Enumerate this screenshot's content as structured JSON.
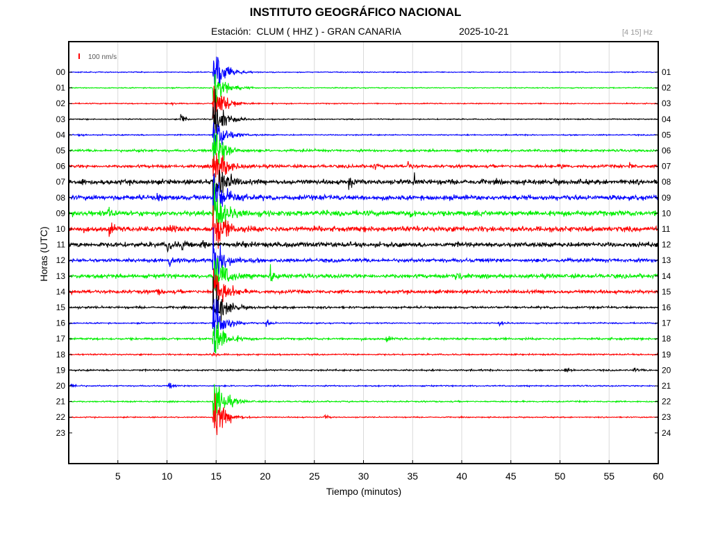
{
  "header": {
    "title": "INSTITUTO GEOGRÁFICO NACIONAL",
    "station_line": "Estación:  CLUM ( HHZ ) - GRAN CANARIA",
    "date": "2025-10-21",
    "frequency": "[4 15] Hz"
  },
  "chart_data": {
    "type": "line",
    "title": "INSTITUTO GEOGRÁFICO NACIONAL",
    "subtitle": "Estación:  CLUM ( HHZ ) - GRAN CANARIA   2025-10-21",
    "xlabel": "Tiempo (minutos)",
    "ylabel": "Horas (UTC)",
    "xlim": [
      0,
      60
    ],
    "x_ticks": [
      "5",
      "10",
      "15",
      "20",
      "25",
      "30",
      "35",
      "40",
      "45",
      "50",
      "55",
      "60"
    ],
    "grid": true,
    "scale_label": "100 nm/s",
    "scale_color": "#ff0000",
    "left_hour_labels": [
      "00",
      "01",
      "02",
      "03",
      "04",
      "05",
      "06",
      "07",
      "08",
      "09",
      "10",
      "11",
      "12",
      "13",
      "14",
      "15",
      "16",
      "17",
      "18",
      "19",
      "20",
      "21",
      "22",
      "23"
    ],
    "right_hour_labels": [
      "01",
      "02",
      "03",
      "04",
      "05",
      "06",
      "07",
      "08",
      "09",
      "10",
      "11",
      "12",
      "13",
      "14",
      "15",
      "16",
      "17",
      "18",
      "19",
      "20",
      "21",
      "22",
      "23",
      "24"
    ],
    "color_cycle": [
      "#0000ff",
      "#00ee00",
      "#ff0000",
      "#000000"
    ],
    "trace_end_minute_hour22": 60,
    "traces": [
      {
        "hour": "00",
        "noise": 0.9,
        "events": [
          {
            "t": 14.7,
            "amp": 60
          }
        ]
      },
      {
        "hour": "01",
        "noise": 0.9,
        "events": [
          {
            "t": 14.7,
            "amp": 60
          }
        ]
      },
      {
        "hour": "02",
        "noise": 1.0,
        "events": [
          {
            "t": 14.7,
            "amp": 60
          },
          {
            "t": 10.5,
            "amp": 3
          }
        ]
      },
      {
        "hour": "03",
        "noise": 1.0,
        "events": [
          {
            "t": 11.4,
            "amp": 16
          },
          {
            "t": 14.7,
            "amp": 60
          }
        ]
      },
      {
        "hour": "04",
        "noise": 1.1,
        "events": [
          {
            "t": 1.0,
            "amp": 3
          },
          {
            "t": 14.7,
            "amp": 60
          }
        ]
      },
      {
        "hour": "05",
        "noise": 2.2,
        "events": [
          {
            "t": 7.0,
            "amp": 3
          },
          {
            "t": 14.7,
            "amp": 60
          }
        ]
      },
      {
        "hour": "06",
        "noise": 2.8,
        "events": [
          {
            "t": 14.7,
            "amp": 60
          },
          {
            "t": 31.0,
            "amp": 7
          },
          {
            "t": 34.5,
            "amp": 9
          },
          {
            "t": 50.0,
            "amp": 7
          },
          {
            "t": 57.0,
            "amp": 8
          }
        ]
      },
      {
        "hour": "07",
        "noise": 4.5,
        "events": [
          {
            "t": 1.0,
            "amp": 9
          },
          {
            "t": 28.5,
            "amp": 14
          },
          {
            "t": 35.0,
            "amp": 16
          },
          {
            "t": 14.7,
            "amp": 60
          }
        ]
      },
      {
        "hour": "08",
        "noise": 4.5,
        "events": [
          {
            "t": 9.0,
            "amp": 8
          },
          {
            "t": 17.5,
            "amp": 10
          },
          {
            "t": 14.7,
            "amp": 60
          }
        ]
      },
      {
        "hour": "09",
        "noise": 5.0,
        "events": [
          {
            "t": 4.0,
            "amp": 10
          },
          {
            "t": 34.8,
            "amp": 9
          },
          {
            "t": 14.7,
            "amp": 60
          }
        ]
      },
      {
        "hour": "10",
        "noise": 5.0,
        "events": [
          {
            "t": 4.1,
            "amp": 14
          },
          {
            "t": 10.3,
            "amp": 16
          },
          {
            "t": 14.7,
            "amp": 60
          }
        ]
      },
      {
        "hour": "11",
        "noise": 4.5,
        "events": [
          {
            "t": 10.0,
            "amp": 16
          },
          {
            "t": 11.5,
            "amp": 12
          },
          {
            "t": 13.5,
            "amp": 12
          },
          {
            "t": 17.5,
            "amp": 8
          }
        ]
      },
      {
        "hour": "12",
        "noise": 3.5,
        "events": [
          {
            "t": 10.2,
            "amp": 18
          },
          {
            "t": 14.7,
            "amp": 60
          }
        ]
      },
      {
        "hour": "13",
        "noise": 3.8,
        "events": [
          {
            "t": 20.5,
            "amp": 20
          },
          {
            "t": 39.3,
            "amp": 22
          },
          {
            "t": 14.7,
            "amp": 60
          }
        ]
      },
      {
        "hour": "14",
        "noise": 3.3,
        "events": [
          {
            "t": 9.0,
            "amp": 7
          },
          {
            "t": 14.7,
            "amp": 60
          }
        ]
      },
      {
        "hour": "15",
        "noise": 2.0,
        "events": [
          {
            "t": 14.7,
            "amp": 60
          }
        ]
      },
      {
        "hour": "16",
        "noise": 1.2,
        "events": [
          {
            "t": 20.1,
            "amp": 10
          },
          {
            "t": 43.8,
            "amp": 7
          },
          {
            "t": 14.7,
            "amp": 60
          }
        ]
      },
      {
        "hour": "17",
        "noise": 2.0,
        "events": [
          {
            "t": 32.3,
            "amp": 7
          },
          {
            "t": 14.7,
            "amp": 60
          }
        ]
      },
      {
        "hour": "18",
        "noise": 1.4,
        "events": [
          {
            "t": 14.6,
            "amp": 7
          }
        ]
      },
      {
        "hour": "19",
        "noise": 1.5,
        "events": [
          {
            "t": 50.5,
            "amp": 4
          },
          {
            "t": 57.5,
            "amp": 5
          }
        ]
      },
      {
        "hour": "20",
        "noise": 1.2,
        "events": [
          {
            "t": 0.3,
            "amp": 7
          },
          {
            "t": 10.2,
            "amp": 8
          }
        ]
      },
      {
        "hour": "21",
        "noise": 1.3,
        "events": [
          {
            "t": 14.7,
            "amp": 60
          }
        ]
      },
      {
        "hour": "22",
        "noise": 1.0,
        "events": [
          {
            "t": 26.0,
            "amp": 6
          },
          {
            "t": 14.7,
            "amp": 60
          }
        ]
      },
      {
        "hour": "23",
        "noise": 0,
        "events": []
      }
    ]
  }
}
